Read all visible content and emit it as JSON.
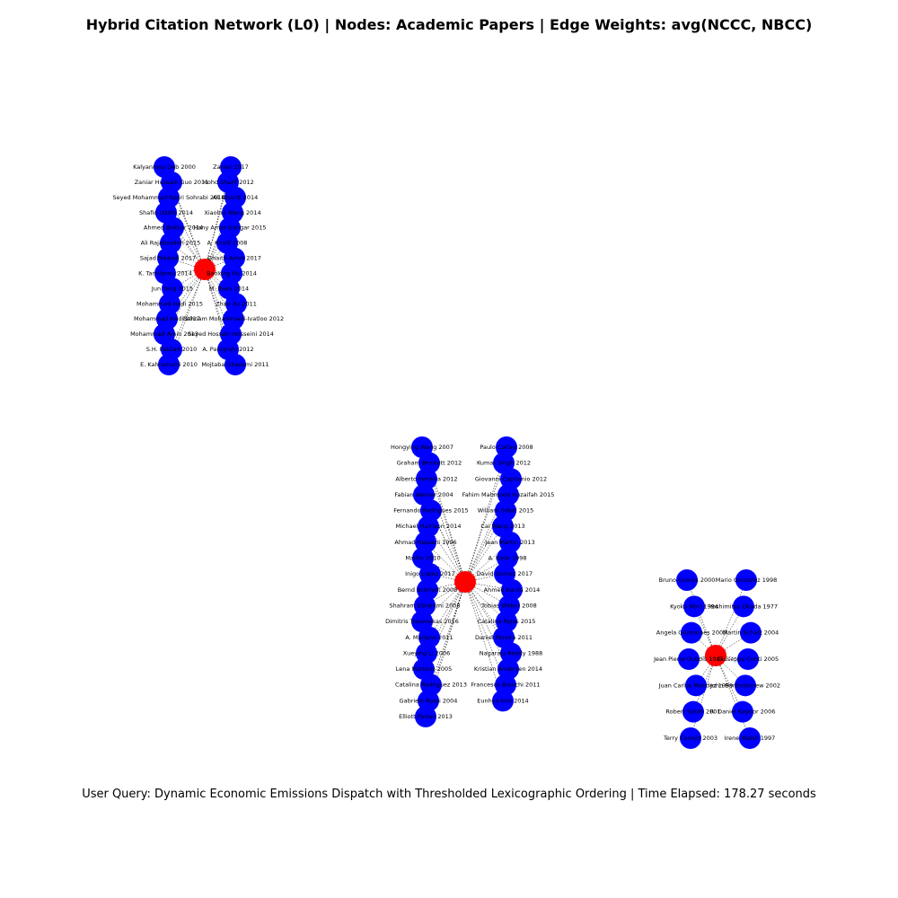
{
  "title": "Hybrid Citation Network (L0) | Nodes: Academic Papers | Edge Weights: avg(NCCC, NBCC)",
  "footer": "User Query: Dynamic Economic Emissions Dispatch with Thresholded Lexicographic Ordering | Time Elapsed: 178.27 seconds",
  "colors": {
    "hub": "#ff0000",
    "paper": "#0000ff",
    "edge": "#000000",
    "background": "#ffffff"
  },
  "clusters": [
    {
      "id": "left",
      "hub": {
        "label": ""
      },
      "papers": [
        "Kalyanmoy Deb 2000",
        "Zaniar 2017",
        "Zaniar Hussain Guo 2011",
        "Mohd Sharif 2012",
        "Seyed Mohammad Nasri Sohrabi 2018",
        "Ali Gharib 2014",
        "Shafiq Uddin 2014",
        "Xiaohui Wang 2014",
        "Ahmed Bakkar 2014",
        "Hany Amer Gangar 2015",
        "Ali Rajabzadeh 2015",
        "A. Khalil 2008",
        "Sajad Madadi 2017",
        "Ghaith Amer 2017",
        "K. Tamilarasi 2014",
        "Baoxing Hu 2014",
        "Jun Yang 2015",
        "M. Basu 2014",
        "Mohammad Hadi 2015",
        "Zhao Xu 2011",
        "Mohammad Hadi 2017",
        "Behnam Mohammadi-Ivatloo 2012",
        "Mohammad Amin 2013",
        "Seyed Hossein Hosseini 2014",
        "S.H. Pakzad 2010",
        "A. Panigrahi 2012",
        "E. Kahramanli 2010",
        "Mojtaba Ghasemi 2011"
      ]
    },
    {
      "id": "center",
      "hub": {
        "label": ""
      },
      "papers": [
        "Hongying Wang 2007",
        "Paulo Cortez 2008",
        "Graham Bennett 2012",
        "Kumar Singh 2012",
        "Alberto Ferreira 2012",
        "Giovanni Capitanio 2012",
        "Fabian Werner 2004",
        "Fahim Mahmood Huzaifah 2015",
        "Fernando Rodrigues 2015",
        "William Sobel 2015",
        "Michael Harrison 2014",
        "Cai Wang 2013",
        "Ahmad Hassani 1996",
        "Jean Martin 2013",
        "Martin 2010",
        "A. Klein 1998",
        "Inigo Lopez 2017",
        "David Gomez 2017",
        "Bernd Schmidt 2008",
        "Ahmed Karim 2014",
        "Shahram Ebrahimi 2008",
        "Tobias Weber 2008",
        "Dimitris Tsoumakas 2016",
        "Catalina Rojas 2015",
        "A. Mariano 2011",
        "Daniel Pereira 2011",
        "Xueying Li 2006",
        "Nagaraju Reddy 1988",
        "Lena Martens 2005",
        "Kristian Andersen 2014",
        "Catalina Rodriguez 2013",
        "Francesco Bianchi 2011",
        "Gabriele Rossi 2004",
        "Eunhye Kim 2014",
        "Elliott Parker 2013"
      ]
    },
    {
      "id": "right",
      "hub": {
        "label": ""
      },
      "papers": [
        "Bruno Gomes 2000",
        "Mario Gonzalez 1998",
        "Kyoko Mori 1994",
        "Yoshimitsu Okada 1977",
        "Angela Guimaraes 2000",
        "Martin Schulz 2004",
        "Jean Pierre Dubois 1981",
        "Giuseppe Conti 2005",
        "Juan Carlos Mendez 1999",
        "John Bartholomew 2002",
        "Robert Smith 2001",
        "R. Daniel Kapoor 2006",
        "Terry Connor 2003",
        "Irene Walsh 1997"
      ]
    }
  ]
}
